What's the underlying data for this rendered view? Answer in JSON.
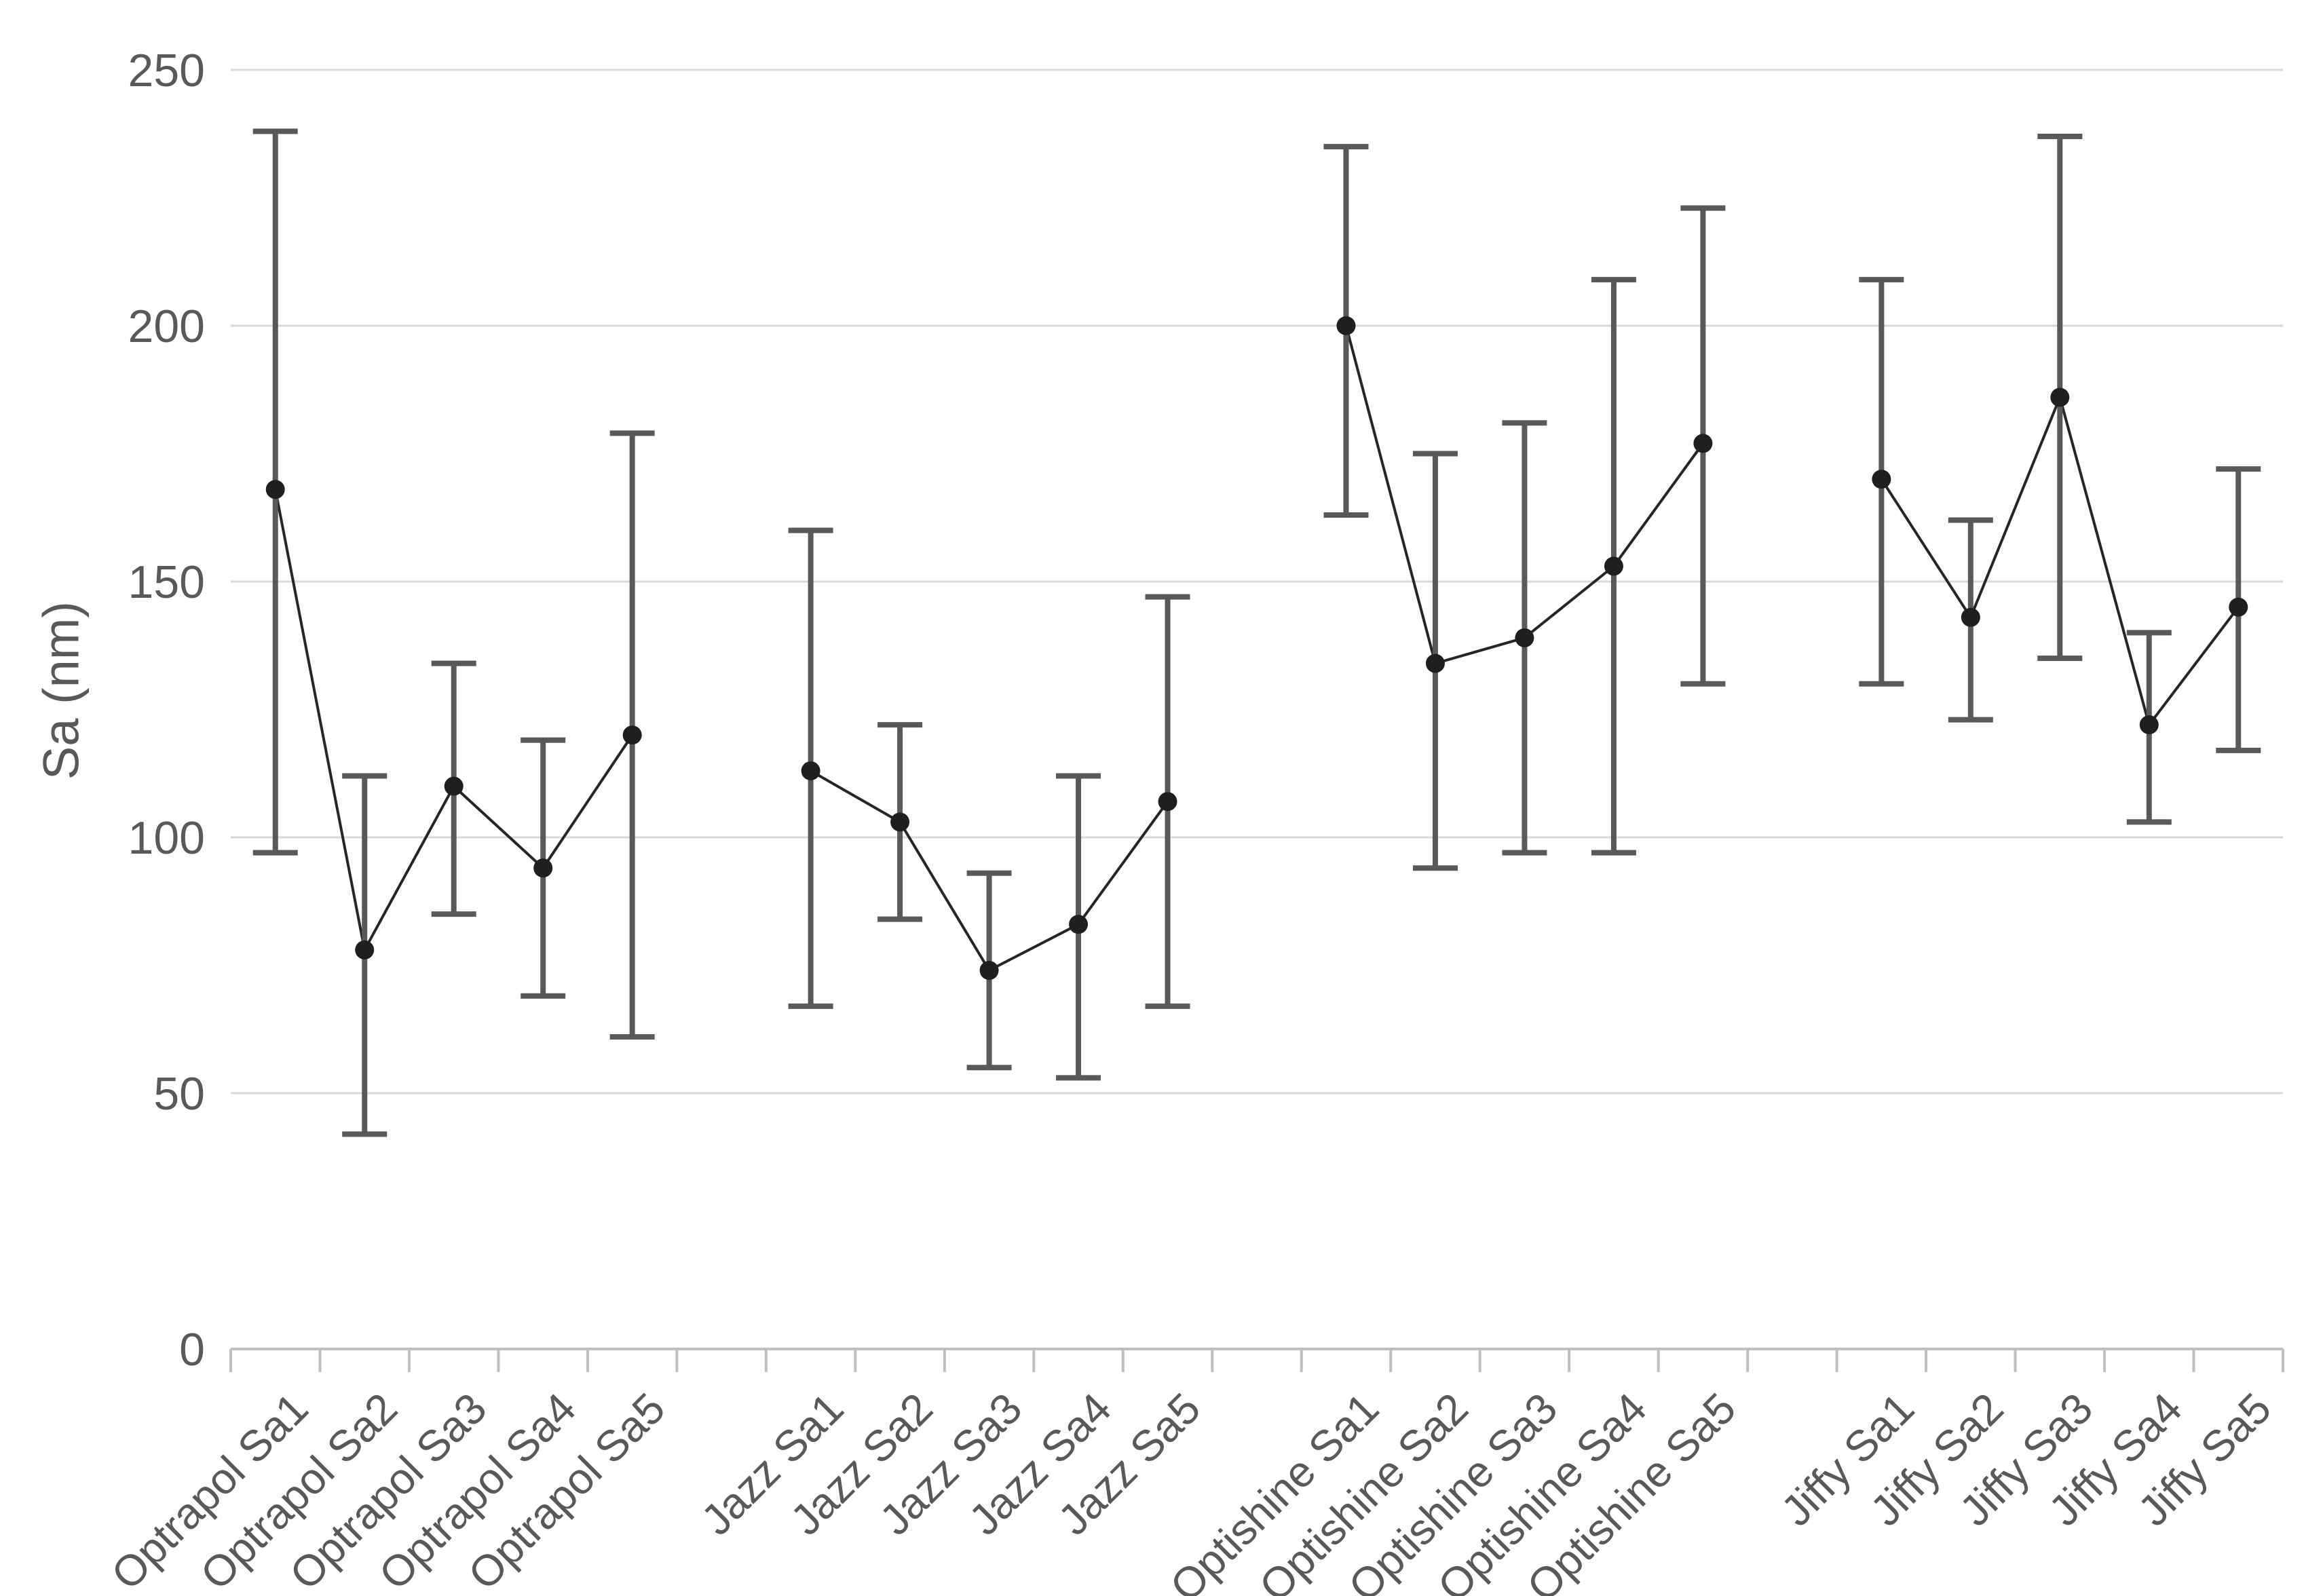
{
  "chart_data": {
    "type": "line",
    "subtype": "means-with-error-bars",
    "ylabel": "Sa (nm)",
    "xlabel": "",
    "ylim": [
      0,
      250
    ],
    "yticks": [
      0,
      50,
      100,
      150,
      200,
      250
    ],
    "grid": "horizontal",
    "legend": "none",
    "group_gap_slots": 1,
    "groups": [
      {
        "name": "Optrapol",
        "points": [
          {
            "label": "Optrapol Sa1",
            "value": 168,
            "err_low": 97,
            "err_high": 238
          },
          {
            "label": "Optrapol Sa2",
            "value": 78,
            "err_low": 42,
            "err_high": 112
          },
          {
            "label": "Optrapol Sa3",
            "value": 110,
            "err_low": 85,
            "err_high": 134
          },
          {
            "label": "Optrapol Sa4",
            "value": 94,
            "err_low": 69,
            "err_high": 119
          },
          {
            "label": "Optrapol Sa5",
            "value": 120,
            "err_low": 61,
            "err_high": 179
          }
        ]
      },
      {
        "name": "Jazz",
        "points": [
          {
            "label": "Jazz Sa1",
            "value": 113,
            "err_low": 67,
            "err_high": 160
          },
          {
            "label": "Jazz Sa2",
            "value": 103,
            "err_low": 84,
            "err_high": 122
          },
          {
            "label": "Jazz Sa3",
            "value": 74,
            "err_low": 55,
            "err_high": 93
          },
          {
            "label": "Jazz Sa4",
            "value": 83,
            "err_low": 53,
            "err_high": 112
          },
          {
            "label": "Jazz Sa5",
            "value": 107,
            "err_low": 67,
            "err_high": 147
          }
        ]
      },
      {
        "name": "Optishine",
        "points": [
          {
            "label": "Optishine Sa1",
            "value": 200,
            "err_low": 163,
            "err_high": 235
          },
          {
            "label": "Optishine Sa2",
            "value": 134,
            "err_low": 94,
            "err_high": 175
          },
          {
            "label": "Optishine Sa3",
            "value": 139,
            "err_low": 97,
            "err_high": 181
          },
          {
            "label": "Optishine Sa4",
            "value": 153,
            "err_low": 97,
            "err_high": 209
          },
          {
            "label": "Optishine Sa5",
            "value": 177,
            "err_low": 130,
            "err_high": 223
          }
        ]
      },
      {
        "name": "Jiffy",
        "points": [
          {
            "label": "Jiffy Sa1",
            "value": 170,
            "err_low": 130,
            "err_high": 209
          },
          {
            "label": "Jiffy Sa2",
            "value": 143,
            "err_low": 123,
            "err_high": 162
          },
          {
            "label": "Jiffy Sa3",
            "value": 186,
            "err_low": 135,
            "err_high": 237
          },
          {
            "label": "Jiffy Sa4",
            "value": 122,
            "err_low": 103,
            "err_high": 140
          },
          {
            "label": "Jiffy Sa5",
            "value": 145,
            "err_low": 117,
            "err_high": 172
          }
        ]
      }
    ],
    "colors": {
      "marker": "#1f1f1f",
      "series_line": "#262626",
      "error_bar": "#595959",
      "gridline": "#d9d9d9",
      "axis_line": "#bfbfbf",
      "tick_label": "#595959",
      "axis_title": "#595959",
      "background": "#ffffff"
    }
  }
}
